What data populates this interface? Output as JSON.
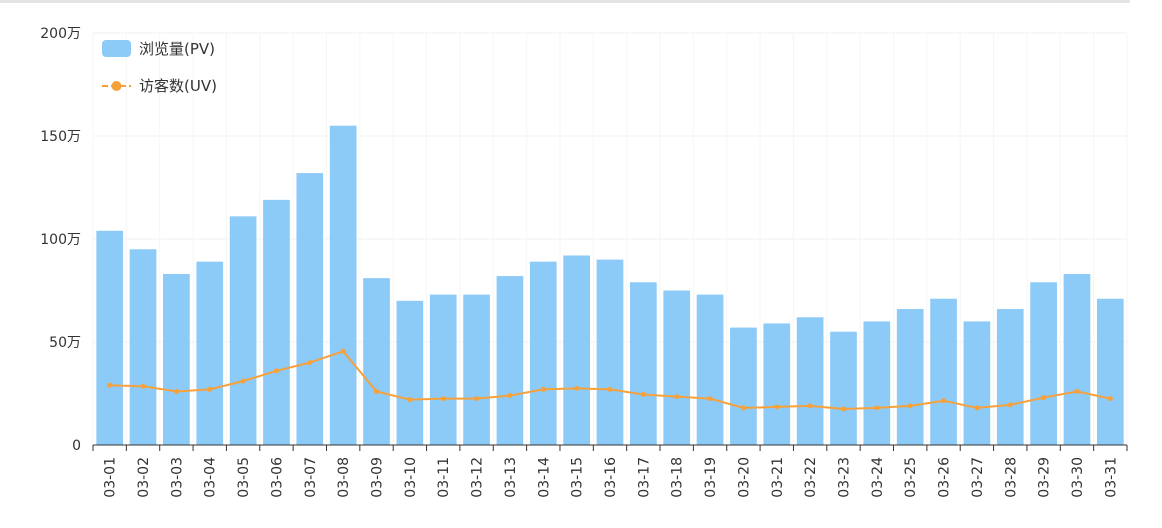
{
  "chart_data": {
    "type": "bar",
    "title": "",
    "xlabel": "",
    "ylabel": "",
    "ylim": [
      0,
      200
    ],
    "y_ticks": [
      {
        "value": 0,
        "label": "0"
      },
      {
        "value": 50,
        "label": "50万"
      },
      {
        "value": 100,
        "label": "100万"
      },
      {
        "value": 150,
        "label": "150万"
      },
      {
        "value": 200,
        "label": "200万"
      }
    ],
    "categories": [
      "03-01",
      "03-02",
      "03-03",
      "03-04",
      "03-05",
      "03-06",
      "03-07",
      "03-08",
      "03-09",
      "03-10",
      "03-11",
      "03-12",
      "03-13",
      "03-14",
      "03-15",
      "03-16",
      "03-17",
      "03-18",
      "03-19",
      "03-20",
      "03-21",
      "03-22",
      "03-23",
      "03-24",
      "03-25",
      "03-26",
      "03-27",
      "03-28",
      "03-29",
      "03-30",
      "03-31"
    ],
    "grid": true,
    "legend": "top-left",
    "series": [
      {
        "name": "浏览量(PV)",
        "kind": "bar",
        "color": "#8ccaf8",
        "values": [
          104,
          95,
          83,
          89,
          111,
          119,
          132,
          155,
          81,
          70,
          73,
          73,
          82,
          89,
          92,
          90,
          79,
          75,
          73,
          57,
          59,
          62,
          55,
          60,
          66,
          71,
          60,
          66,
          79,
          83,
          71
        ]
      },
      {
        "name": "访客数(UV)",
        "kind": "line",
        "color": "#f7a13b",
        "values": [
          29,
          28.5,
          26,
          27,
          31,
          36,
          40,
          45.5,
          26,
          22,
          22.5,
          22.5,
          24,
          27,
          27.5,
          27,
          24.5,
          23.5,
          22.5,
          18,
          18.5,
          19,
          17.5,
          18,
          19,
          21.5,
          18,
          19.5,
          23,
          26,
          22.5
        ]
      }
    ]
  }
}
